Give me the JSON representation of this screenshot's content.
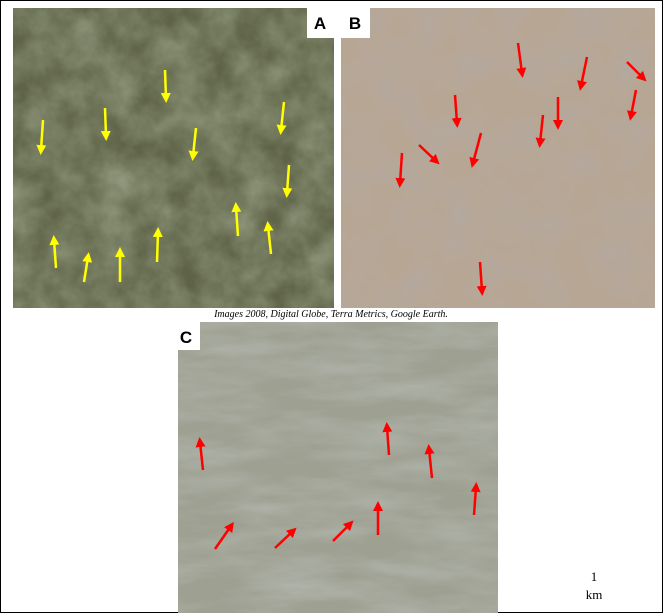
{
  "panels": [
    {
      "label": "A"
    },
    {
      "label": "B"
    },
    {
      "label": "C"
    }
  ],
  "caption": "Images 2008, Digital Globe, Terra Metrics, Google Earth.",
  "scale": {
    "value": "1",
    "unit": "km"
  }
}
